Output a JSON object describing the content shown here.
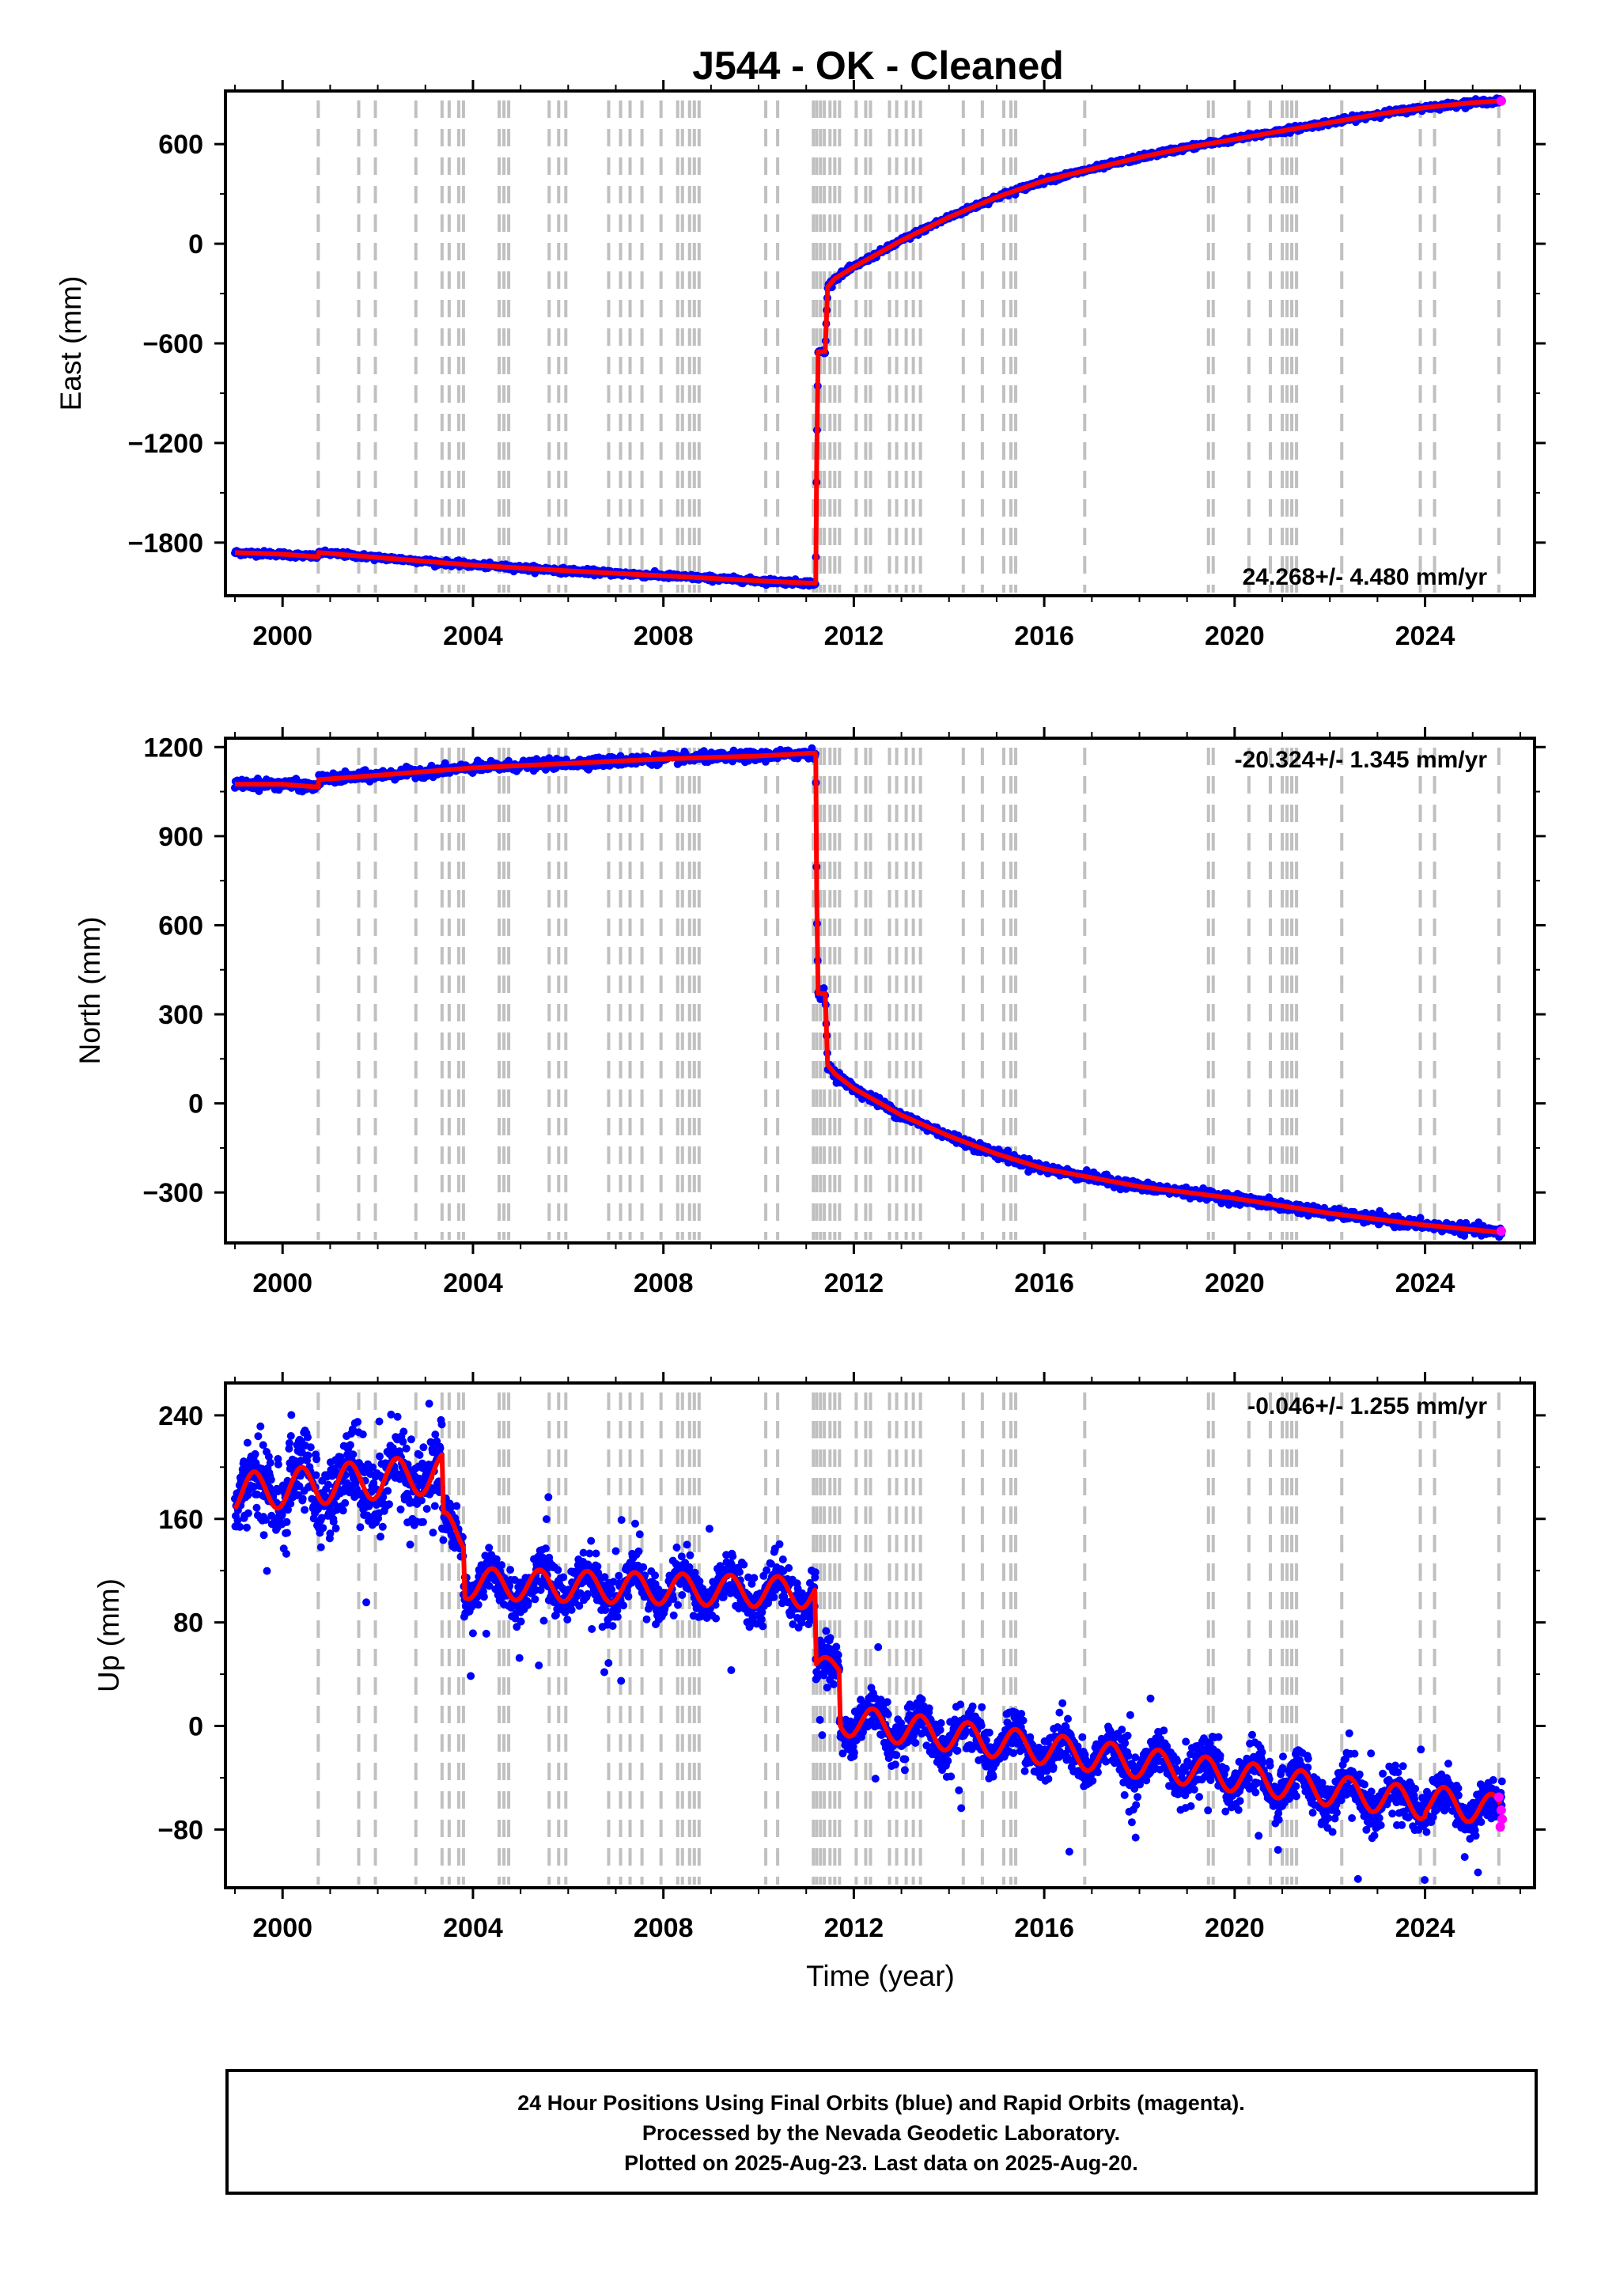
{
  "title": "J544  - OK - Cleaned",
  "colors": {
    "final": "#0000ff",
    "rapid": "#ff00ff",
    "model": "#ff0000",
    "steps": "#c0c0c0"
  },
  "xaxis": {
    "label": "Time (year)",
    "range": [
      1998.8,
      2026.3
    ],
    "ticks": [
      2000,
      2004,
      2008,
      2012,
      2016,
      2020,
      2024
    ]
  },
  "step_epochs": [
    2000.75,
    2001.6,
    2001.95,
    2002.8,
    2003.35,
    2003.5,
    2003.7,
    2003.8,
    2004.55,
    2004.65,
    2004.75,
    2005.6,
    2005.8,
    2005.95,
    2006.85,
    2007.1,
    2007.3,
    2007.55,
    2007.95,
    2008.3,
    2008.4,
    2008.55,
    2008.65,
    2008.75,
    2010.15,
    2010.4,
    2011.15,
    2011.22,
    2011.3,
    2011.38,
    2011.5,
    2011.6,
    2011.7,
    2012.05,
    2012.25,
    2012.35,
    2012.75,
    2012.9,
    2013.1,
    2013.25,
    2013.4,
    2014.3,
    2014.7,
    2015.15,
    2015.3,
    2015.4,
    2016.85,
    2019.45,
    2019.55,
    2020.3,
    2020.75,
    2021.0,
    2021.1,
    2021.2,
    2021.3,
    2022.25,
    2023.9,
    2024.2,
    2025.55
  ],
  "chart_data": [
    {
      "type": "scatter",
      "ylabel": "East (mm)",
      "rate_label": "24.268+/- 4.480 mm/yr",
      "ylim": [
        -2120,
        920
      ],
      "yticks": [
        -1800,
        -1200,
        -600,
        0,
        600
      ],
      "x": [
        1999.0,
        2000.0,
        2000.75,
        2000.76,
        2002.0,
        2004.0,
        2006.0,
        2008.0,
        2010.0,
        2011.19,
        2011.2,
        2011.22,
        2011.25,
        2011.4,
        2011.45,
        2011.6,
        2012.0,
        2013.0,
        2014.0,
        2015.0,
        2016.0,
        2017.0,
        2018.0,
        2019.0,
        2020.0,
        2021.0,
        2022.0,
        2023.0,
        2024.0,
        2025.0,
        2025.6
      ],
      "y": [
        -1860,
        -1870,
        -1885,
        -1860,
        -1890,
        -1935,
        -1970,
        -2000,
        -2030,
        -2045,
        -2040,
        -1300,
        -650,
        -650,
        -260,
        -210,
        -140,
        20,
        160,
        280,
        380,
        450,
        520,
        580,
        630,
        680,
        730,
        780,
        820,
        850,
        860
      ],
      "rapid": [
        [
          2025.6,
          860
        ]
      ]
    },
    {
      "type": "scatter",
      "ylabel": "North (mm)",
      "rate_label": "-20.324+/- 1.345 mm/yr",
      "ylim": [
        -470,
        1230
      ],
      "yticks": [
        -300,
        0,
        300,
        600,
        900,
        1200
      ],
      "x": [
        1999.0,
        2000.0,
        2000.75,
        2000.76,
        2002.0,
        2004.0,
        2006.0,
        2008.0,
        2010.0,
        2011.19,
        2011.2,
        2011.22,
        2011.25,
        2011.4,
        2011.45,
        2011.6,
        2012.0,
        2013.0,
        2014.0,
        2015.0,
        2016.0,
        2017.0,
        2018.0,
        2019.0,
        2020.0,
        2021.0,
        2022.0,
        2023.0,
        2024.0,
        2025.0,
        2025.6
      ],
      "y": [
        1075,
        1075,
        1065,
        1090,
        1105,
        1130,
        1145,
        1160,
        1170,
        1180,
        1170,
        700,
        370,
        370,
        130,
        100,
        50,
        -40,
        -110,
        -170,
        -220,
        -250,
        -280,
        -300,
        -320,
        -345,
        -370,
        -390,
        -410,
        -425,
        -435
      ],
      "rapid": [
        [
          2025.6,
          -430
        ]
      ]
    },
    {
      "type": "scatter",
      "ylabel": "Up (mm)",
      "rate_label": "-0.046+/- 1.255 mm/yr",
      "ylim": [
        -125,
        265
      ],
      "yticks": [
        -80,
        0,
        80,
        160,
        240
      ],
      "rapid": [
        [
          2025.55,
          -55
        ],
        [
          2025.6,
          -65
        ],
        [
          2025.62,
          -72
        ],
        [
          2025.58,
          -78
        ]
      ]
    }
  ],
  "footer": [
    "24 Hour Positions Using Final Orbits (blue) and Rapid Orbits (magenta).",
    "Processed by the Nevada Geodetic Laboratory.",
    "Plotted on 2025-Aug-23. Last data on 2025-Aug-20."
  ]
}
